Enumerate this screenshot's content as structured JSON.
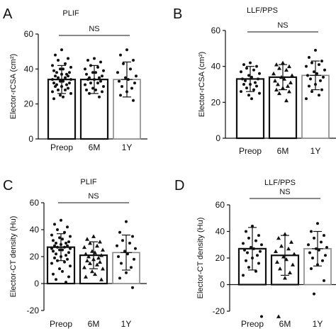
{
  "chart_data": [
    {
      "type": "bar",
      "panel_letter": "A",
      "title": "PLIF",
      "ylabel": "Elector-rCSA (cm²)",
      "ylim": [
        0,
        60
      ],
      "yticks": [
        "0",
        "20",
        "40",
        "60"
      ],
      "categories": [
        "Preop",
        "6M",
        "1Y"
      ],
      "values": [
        34,
        34,
        34
      ],
      "sd": [
        8,
        8,
        10
      ],
      "significance": "NS",
      "sig_span": [
        0,
        2
      ],
      "bar_color": "#000000",
      "bar_colors": [
        "#111111",
        "#111111",
        "#888888"
      ],
      "marker": [
        "circle",
        "circle",
        "circle"
      ],
      "points": [
        [
          51,
          48,
          46,
          45,
          43,
          42,
          41,
          40,
          40,
          39,
          38,
          38,
          37,
          37,
          36,
          36,
          35,
          35,
          34,
          34,
          33,
          33,
          32,
          32,
          31,
          31,
          30,
          30,
          29,
          28,
          28,
          27,
          26,
          25,
          24,
          23
        ],
        [
          46,
          45,
          44,
          42,
          41,
          40,
          39,
          38,
          38,
          37,
          36,
          35,
          35,
          34,
          34,
          33,
          32,
          32,
          31,
          30,
          29,
          28,
          28,
          27,
          26,
          24
        ],
        [
          51,
          48,
          45,
          43,
          40,
          38,
          36,
          35,
          34,
          33,
          32,
          30,
          29,
          27,
          25,
          22
        ]
      ]
    },
    {
      "type": "bar",
      "panel_letter": "B",
      "title": "LLF/PPS",
      "ylabel": "Elector-rCSA (cm²)",
      "ylim": [
        0,
        60
      ],
      "yticks": [
        "0",
        "20",
        "40",
        "60"
      ],
      "categories": [
        "Preop",
        "6M",
        "1Y"
      ],
      "values": [
        33,
        34,
        35
      ],
      "sd": [
        7,
        7,
        8
      ],
      "significance": "NS",
      "sig_span": [
        0,
        2
      ],
      "bar_color": "#000000",
      "bar_colors": [
        "#111111",
        "#111111",
        "#888888"
      ],
      "marker": [
        "circle",
        "triangle",
        "circle"
      ],
      "points": [
        [
          42,
          41,
          40,
          39,
          38,
          37,
          36,
          35,
          34,
          33,
          33,
          32,
          31,
          30,
          30,
          29,
          28,
          27,
          26,
          25,
          24,
          22
        ],
        [
          42,
          41,
          40,
          39,
          38,
          36,
          35,
          34,
          33,
          32,
          31,
          30,
          29,
          28,
          27,
          26,
          25,
          21
        ],
        [
          49,
          45,
          43,
          42,
          41,
          40,
          38,
          37,
          36,
          35,
          34,
          33,
          32,
          30,
          29,
          27,
          26,
          24,
          22
        ]
      ]
    },
    {
      "type": "bar",
      "panel_letter": "C",
      "title": "PLIF",
      "ylabel": "Elector-CT density (Hu)",
      "ylim": [
        -20,
        60
      ],
      "yticks": [
        "-20",
        "0",
        "20",
        "40",
        "60"
      ],
      "categories": [
        "Preop",
        "6M",
        "1Y"
      ],
      "values": [
        27,
        21,
        23
      ],
      "sd": [
        10,
        10,
        13
      ],
      "significance": "NS",
      "sig_span": [
        0,
        2
      ],
      "bar_color": "#000000",
      "bar_colors": [
        "#111111",
        "#111111",
        "#888888"
      ],
      "marker": [
        "circle",
        "triangle",
        "circle"
      ],
      "points": [
        [
          47,
          44,
          42,
          40,
          38,
          36,
          35,
          34,
          33,
          32,
          31,
          30,
          30,
          29,
          28,
          28,
          27,
          27,
          26,
          26,
          25,
          25,
          24,
          23,
          22,
          21,
          20,
          19,
          18,
          17,
          16,
          15,
          13,
          11,
          9,
          7,
          5,
          3,
          1
        ],
        [
          35,
          33,
          31,
          30,
          28,
          27,
          25,
          24,
          23,
          22,
          21,
          20,
          19,
          18,
          17,
          16,
          15,
          14,
          12,
          11,
          9,
          7,
          5,
          3
        ],
        [
          46,
          38,
          35,
          32,
          30,
          28,
          26,
          24,
          22,
          20,
          18,
          15,
          12,
          8,
          4,
          -3
        ]
      ]
    },
    {
      "type": "bar",
      "panel_letter": "D",
      "title": "LLF/PPS",
      "ylabel": "Elector-CT density (Hu)",
      "ylim": [
        -20,
        60
      ],
      "yticks": [
        "-20",
        "0",
        "20",
        "40",
        "60"
      ],
      "categories": [
        "Preop",
        "6M",
        "1Y"
      ],
      "values": [
        27,
        22,
        27
      ],
      "sd": [
        16,
        15,
        13
      ],
      "significance": "NS",
      "sig_span": [
        0,
        2
      ],
      "bar_color": "#000000",
      "bar_colors": [
        "#111111",
        "#111111",
        "#888888"
      ],
      "marker": [
        "circle",
        "triangle",
        "circle"
      ],
      "points": [
        [
          44,
          40,
          37,
          35,
          33,
          31,
          30,
          28,
          27,
          26,
          25,
          24,
          22,
          20,
          18,
          16,
          13,
          10,
          7,
          -24
        ],
        [
          38,
          35,
          32,
          29,
          27,
          25,
          23,
          21,
          19,
          17,
          15,
          12,
          9,
          5,
          -24
        ],
        [
          46,
          40,
          37,
          35,
          32,
          30,
          28,
          27,
          26,
          24,
          22,
          20,
          18,
          15,
          12,
          3,
          -7
        ]
      ]
    }
  ]
}
